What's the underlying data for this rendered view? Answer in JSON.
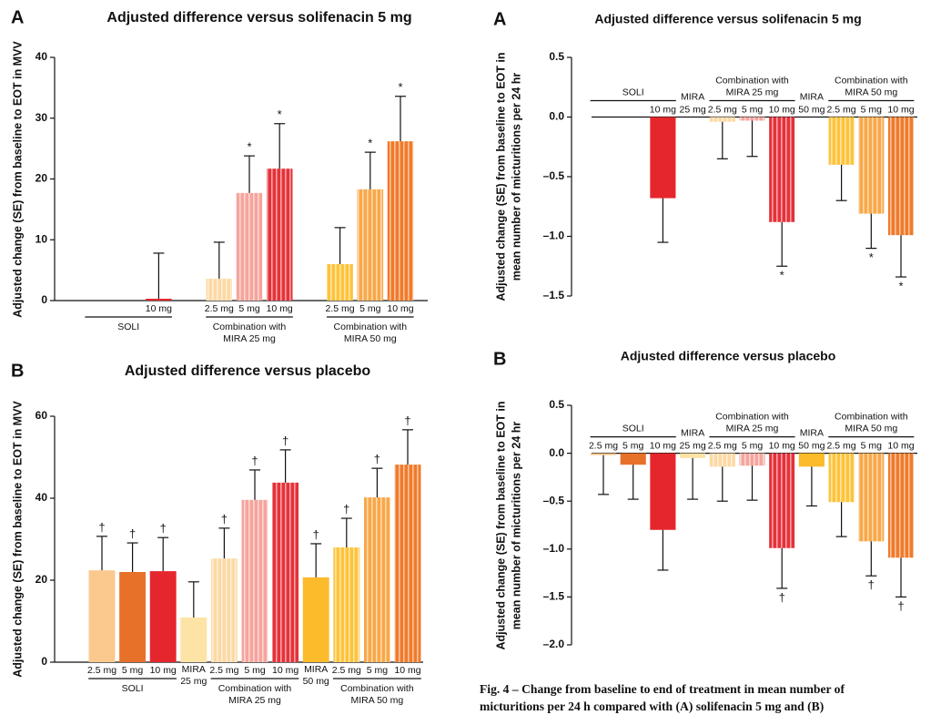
{
  "chart_data": [
    {
      "type": "bar",
      "panel": "A",
      "title": "Adjusted difference versus solifenacin 5 mg",
      "ylabel": [
        "Adjusted change (SE) from baseline  to EOT in MVV"
      ],
      "ylim": [
        0,
        40
      ],
      "yticks": [
        0,
        10,
        20,
        30,
        40
      ],
      "groups": [
        {
          "label": [
            "SOLI"
          ],
          "striped": false,
          "categories": [
            null,
            null,
            "10 mg"
          ],
          "values": [
            null,
            null,
            0.3
          ],
          "errors": [
            null,
            null,
            7.5
          ],
          "annotations": [
            null,
            null,
            null
          ],
          "colors": [
            null,
            null,
            "#e5262d"
          ]
        },
        {
          "label": null,
          "striped": false,
          "categories": [
            null
          ],
          "values": [
            null
          ],
          "errors": [
            null
          ],
          "annotations": [
            null
          ],
          "colors": [
            null
          ]
        },
        {
          "label": [
            "Combination with",
            "MIRA 25 mg"
          ],
          "striped": true,
          "categories": [
            "2.5 mg",
            "5 mg",
            "10 mg"
          ],
          "values": [
            3.6,
            17.7,
            21.7
          ],
          "errors": [
            6.0,
            6.1,
            7.4
          ],
          "annotations": [
            null,
            "*",
            "*"
          ],
          "colors": [
            "#fcd9a4",
            "#f5a49c",
            "#e5323a"
          ]
        },
        {
          "label": null,
          "striped": false,
          "categories": [
            null
          ],
          "values": [
            null
          ],
          "errors": [
            null
          ],
          "annotations": [
            null
          ],
          "colors": [
            null
          ]
        },
        {
          "label": [
            "Combination with",
            "MIRA 50 mg"
          ],
          "striped": true,
          "categories": [
            "2.5 mg",
            "5 mg",
            "10 mg"
          ],
          "values": [
            6.0,
            18.3,
            26.2
          ],
          "errors": [
            6.0,
            6.1,
            7.4
          ],
          "annotations": [
            null,
            "*",
            "*"
          ],
          "colors": [
            "#fcc43a",
            "#f8a848",
            "#f07a2a"
          ]
        }
      ]
    },
    {
      "type": "bar",
      "panel": "B",
      "title": "Adjusted difference versus placebo",
      "ylabel": [
        "Adjusted change (SE) from baseline  to EOT in MVV"
      ],
      "ylim": [
        0,
        60
      ],
      "yticks": [
        0,
        20,
        40,
        60
      ],
      "groups": [
        {
          "label": [
            "SOLI"
          ],
          "striped": false,
          "categories": [
            "2.5 mg",
            "5 mg",
            "10 mg"
          ],
          "values": [
            22.4,
            22.0,
            22.2
          ],
          "errors": [
            8.3,
            7.1,
            8.2
          ],
          "annotations": [
            "†",
            "†",
            "†"
          ],
          "colors": [
            "#fbc98e",
            "#e8712a",
            "#e5262d"
          ]
        },
        {
          "label": [
            "MIRA",
            "25 mg"
          ],
          "striped": false,
          "categories": [
            null
          ],
          "values": [
            10.9
          ],
          "errors": [
            8.7
          ],
          "annotations": [
            null
          ],
          "colors": [
            "#fde3a6"
          ]
        },
        {
          "label": [
            "Combination with",
            "MIRA 25 mg"
          ],
          "striped": true,
          "categories": [
            "2.5 mg",
            "5 mg",
            "10 mg"
          ],
          "values": [
            25.3,
            39.6,
            43.8
          ],
          "errors": [
            7.4,
            7.3,
            8.0
          ],
          "annotations": [
            "†",
            "†",
            "†"
          ],
          "colors": [
            "#fcd9a4",
            "#f5a49c",
            "#e5323a"
          ]
        },
        {
          "label": [
            "MIRA",
            "50 mg"
          ],
          "striped": false,
          "categories": [
            null
          ],
          "values": [
            20.7
          ],
          "errors": [
            8.2
          ],
          "annotations": [
            "†"
          ],
          "colors": [
            "#fbbb2b"
          ]
        },
        {
          "label": [
            "Combination with",
            "MIRA 50 mg"
          ],
          "striped": true,
          "categories": [
            "2.5 mg",
            "5 mg",
            "10 mg"
          ],
          "values": [
            28.0,
            40.2,
            48.2
          ],
          "errors": [
            7.1,
            7.1,
            8.5
          ],
          "annotations": [
            "†",
            "†",
            "†"
          ],
          "colors": [
            "#fcc43a",
            "#f8a848",
            "#f07a2a"
          ]
        }
      ]
    },
    {
      "type": "bar",
      "panel": "A",
      "title": "Adjusted difference versus solifenacin 5 mg",
      "ylabel": [
        "Adjusted change (SE) from baseline to EOT in",
        "mean number of micturitions per 24 hr"
      ],
      "ylim": [
        -1.5,
        0.5
      ],
      "yticks": [
        {
          "value": -1.5,
          "label": "–1.5"
        },
        {
          "value": -1.0,
          "label": "–1.0"
        },
        {
          "value": -0.5,
          "label": "–0.5"
        },
        {
          "value": 0,
          "label": "0.0"
        },
        0.5
      ],
      "groups": [
        {
          "label": [
            "SOLI"
          ],
          "striped": false,
          "categories": [
            null,
            null,
            "10 mg"
          ],
          "values": [
            null,
            null,
            -0.68
          ],
          "errors": [
            null,
            null,
            0.37
          ],
          "annotations": [
            null,
            null,
            null
          ],
          "colors": [
            null,
            null,
            "#e5262d"
          ]
        },
        {
          "label": [
            "MIRA",
            "25 mg"
          ],
          "striped": false,
          "categories": [
            null
          ],
          "values": [
            null
          ],
          "errors": [
            null
          ],
          "annotations": [
            null
          ],
          "colors": [
            null
          ]
        },
        {
          "label": [
            "Combination with",
            "MIRA 25 mg"
          ],
          "striped": true,
          "categories": [
            "2.5 mg",
            "5 mg",
            "10 mg"
          ],
          "values": [
            -0.04,
            -0.03,
            -0.88
          ],
          "errors": [
            0.31,
            0.3,
            0.37
          ],
          "annotations": [
            null,
            null,
            "*"
          ],
          "colors": [
            "#fcd9a4",
            "#f5a49c",
            "#e5323a"
          ]
        },
        {
          "label": [
            "MIRA",
            "50 mg"
          ],
          "striped": false,
          "categories": [
            null
          ],
          "values": [
            null
          ],
          "errors": [
            null
          ],
          "annotations": [
            null
          ],
          "colors": [
            null
          ]
        },
        {
          "label": [
            "Combination with",
            "MIRA 50 mg"
          ],
          "striped": true,
          "categories": [
            "2.5 mg",
            "5 mg",
            "10 mg"
          ],
          "values": [
            -0.4,
            -0.81,
            -0.99
          ],
          "errors": [
            0.3,
            0.29,
            0.35
          ],
          "annotations": [
            null,
            "*",
            "*"
          ],
          "colors": [
            "#fcc43a",
            "#f8a848",
            "#f07a2a"
          ]
        }
      ]
    },
    {
      "type": "bar",
      "panel": "B",
      "title": "Adjusted difference versus placebo",
      "ylabel": [
        "Adjusted change (SE) from baseline to EOT in",
        "mean number of micturitions per 24 hr"
      ],
      "ylim": [
        -2.0,
        0.5
      ],
      "yticks": [
        {
          "value": -2.0,
          "label": "–2.0"
        },
        {
          "value": -1.5,
          "label": "–1.5"
        },
        {
          "value": -1.0,
          "label": "–1.0"
        },
        {
          "value": -0.5,
          "label": "–0.5"
        },
        {
          "value": 0,
          "label": "0.0"
        },
        0.5
      ],
      "groups": [
        {
          "label": [
            "SOLI"
          ],
          "striped": false,
          "categories": [
            "2.5 mg",
            "5 mg",
            "10 mg"
          ],
          "values": [
            -0.02,
            -0.12,
            -0.8
          ],
          "errors": [
            0.41,
            0.36,
            0.42
          ],
          "annotations": [
            null,
            null,
            null
          ],
          "colors": [
            "#fbc98e",
            "#e8712a",
            "#e5262d"
          ]
        },
        {
          "label": [
            "MIRA",
            "25 mg"
          ],
          "striped": false,
          "categories": [
            null
          ],
          "values": [
            -0.05
          ],
          "errors": [
            0.43
          ],
          "annotations": [
            null
          ],
          "colors": [
            "#fde3a6"
          ]
        },
        {
          "label": [
            "Combination with",
            "MIRA 25 mg"
          ],
          "striped": true,
          "categories": [
            "2.5 mg",
            "5 mg",
            "10 mg"
          ],
          "values": [
            -0.14,
            -0.13,
            -0.99
          ],
          "errors": [
            0.36,
            0.36,
            0.42
          ],
          "annotations": [
            null,
            null,
            "†"
          ],
          "colors": [
            "#fcd9a4",
            "#f5a49c",
            "#e5323a"
          ]
        },
        {
          "label": [
            "MIRA",
            "50 mg"
          ],
          "striped": false,
          "categories": [
            null
          ],
          "values": [
            -0.14
          ],
          "errors": [
            0.41
          ],
          "annotations": [
            null
          ],
          "colors": [
            "#fbbb2b"
          ]
        },
        {
          "label": [
            "Combination with",
            "MIRA 50 mg"
          ],
          "striped": true,
          "categories": [
            "2.5 mg",
            "5 mg",
            "10 mg"
          ],
          "values": [
            -0.51,
            -0.92,
            -1.09
          ],
          "errors": [
            0.36,
            0.36,
            0.41
          ],
          "annotations": [
            null,
            "†",
            "†"
          ],
          "colors": [
            "#fcc43a",
            "#f8a848",
            "#f07a2a"
          ]
        }
      ]
    }
  ],
  "caption": [
    "Fig. 4 – Change from baseline to end of treatment in mean number of",
    "micturitions per 24 h compared with (A) solifenacin 5 mg and (B)"
  ]
}
